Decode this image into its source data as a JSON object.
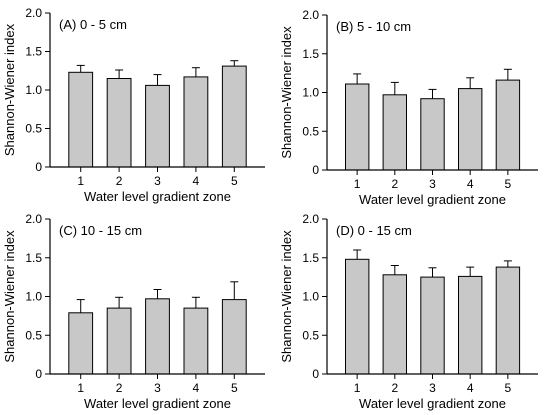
{
  "colors": {
    "bar_fill": "#c8c8c8",
    "bar_stroke": "#000000",
    "axis": "#000000"
  },
  "chart_data": [
    {
      "type": "bar",
      "title": "(A) 0 - 5 cm",
      "xlabel": "Water level gradient zone",
      "ylabel": "Shannon-Wiener index",
      "categories": [
        "1",
        "2",
        "3",
        "4",
        "5"
      ],
      "values": [
        1.23,
        1.15,
        1.06,
        1.17,
        1.31
      ],
      "errors": [
        0.09,
        0.11,
        0.14,
        0.12,
        0.07
      ],
      "ylim": [
        0,
        2.0
      ],
      "yticks": [
        "0",
        "0.5",
        "1.0",
        "1.5",
        "2.0"
      ],
      "grid": false,
      "legend": "none"
    },
    {
      "type": "bar",
      "title": "(B) 5 - 10 cm",
      "xlabel": "Water level gradient zone",
      "ylabel": "Shannon-Wiener index",
      "categories": [
        "1",
        "2",
        "3",
        "4",
        "5"
      ],
      "values": [
        1.11,
        0.97,
        0.92,
        1.05,
        1.16
      ],
      "errors": [
        0.13,
        0.16,
        0.12,
        0.14,
        0.14
      ],
      "ylim": [
        0,
        2.0
      ],
      "yticks": [
        "0",
        "0.5",
        "1.0",
        "1.5",
        "2.0"
      ],
      "grid": false,
      "legend": "none"
    },
    {
      "type": "bar",
      "title": "(C) 10 - 15 cm",
      "xlabel": "Water level gradient zone",
      "ylabel": "Shannon-Wiener index",
      "categories": [
        "1",
        "2",
        "3",
        "4",
        "5"
      ],
      "values": [
        0.79,
        0.85,
        0.97,
        0.85,
        0.96
      ],
      "errors": [
        0.17,
        0.14,
        0.12,
        0.14,
        0.23
      ],
      "ylim": [
        0,
        2.0
      ],
      "yticks": [
        "0",
        "0.5",
        "1.0",
        "1.5",
        "2.0"
      ],
      "grid": false,
      "legend": "none"
    },
    {
      "type": "bar",
      "title": "(D) 0 - 15 cm",
      "xlabel": "Water level gradient zone",
      "ylabel": "Shannon-Wiener index",
      "categories": [
        "1",
        "2",
        "3",
        "4",
        "5"
      ],
      "values": [
        1.48,
        1.28,
        1.25,
        1.26,
        1.38
      ],
      "errors": [
        0.12,
        0.12,
        0.12,
        0.12,
        0.08
      ],
      "ylim": [
        0,
        2.0
      ],
      "yticks": [
        "0",
        "0.5",
        "1.0",
        "1.5",
        "2.0"
      ],
      "grid": false,
      "legend": "none"
    }
  ]
}
